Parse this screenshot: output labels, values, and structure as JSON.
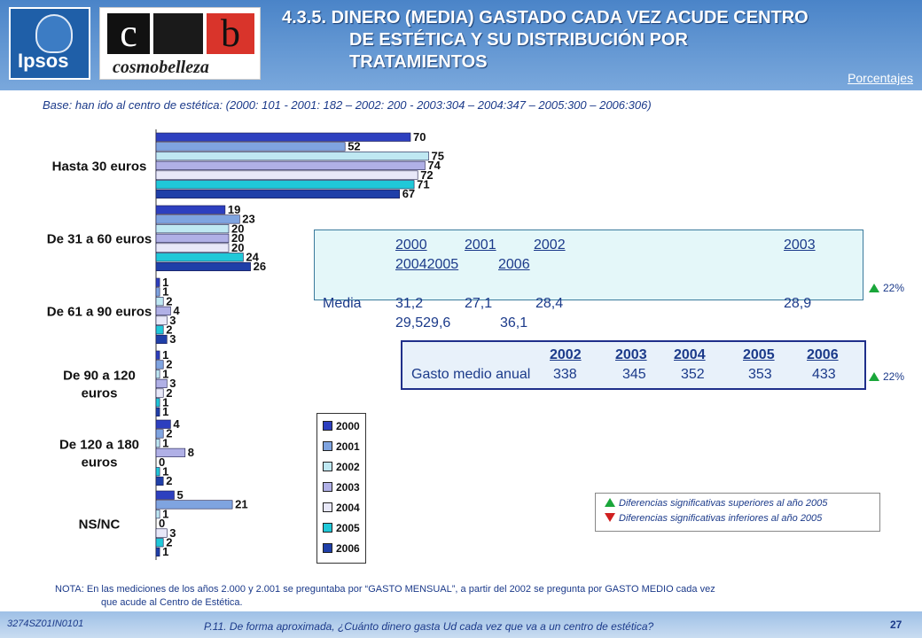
{
  "header": {
    "title_lines": [
      "4.3.5. DINERO (MEDIA) GASTADO CADA VEZ ACUDE CENTRO",
      "DE ESTÉTICA Y SU DISTRIBUCIÓN POR",
      "TRATAMIENTOS"
    ],
    "unit_label": "Porcentajes",
    "logo_ipsos": "Ipsos",
    "logo_cosmo_c": "c",
    "logo_cosmo_b": "b",
    "logo_cosmo_text": "cosmobelleza"
  },
  "base_text": "Base: han ido al centro de estética: (2000: 101 - 2001: 182 – 2002: 200 - 2003:304 – 2004:347 – 2005:300 – 2006:306)",
  "chart_data": {
    "type": "bar",
    "orientation": "horizontal",
    "categories": [
      "Hasta 30 euros",
      "De 31 a 60 euros",
      "De 61 a 90 euros",
      "De 90 a 120 euros",
      "De 120 a 180 euros",
      "NS/NC"
    ],
    "series": [
      {
        "name": "2000",
        "color": "#2d3fbf",
        "values": [
          70,
          19,
          1,
          1,
          4,
          5
        ]
      },
      {
        "name": "2001",
        "color": "#7fa4e0",
        "values": [
          52,
          23,
          1,
          2,
          2,
          21
        ]
      },
      {
        "name": "2002",
        "color": "#bfe8f2",
        "values": [
          75,
          20,
          2,
          1,
          1,
          1
        ]
      },
      {
        "name": "2003",
        "color": "#b0b0e6",
        "values": [
          74,
          20,
          4,
          3,
          8,
          0
        ]
      },
      {
        "name": "2004",
        "color": "#e8e8f8",
        "values": [
          72,
          20,
          3,
          2,
          0,
          3
        ]
      },
      {
        "name": "2005",
        "color": "#20c8d8",
        "values": [
          71,
          24,
          2,
          1,
          1,
          2
        ]
      },
      {
        "name": "2006",
        "color": "#1f3fa8",
        "values": [
          67,
          26,
          3,
          1,
          2,
          1
        ]
      }
    ],
    "xlim": [
      0,
      100
    ],
    "legend_position": "bottom-center"
  },
  "table1": {
    "header_line1": [
      "2000",
      "2001",
      "2002",
      "2003"
    ],
    "header_line2": [
      "20042005",
      "2006"
    ],
    "row_label": "Media",
    "row_line1": [
      "31,2",
      "27,1",
      "28,4",
      "28,9"
    ],
    "row_line2": [
      "29,529,6",
      "36,1"
    ],
    "sig_label": "22%"
  },
  "table2": {
    "headers": [
      "2002",
      "2003",
      "2004",
      "2005",
      "2006"
    ],
    "row_label": "Gasto medio anual",
    "values": [
      "338",
      "345",
      "352",
      "353",
      "433"
    ],
    "sig_label": "22%"
  },
  "significance_legend": {
    "up": "Diferencias significativas superiores al año 2005",
    "down": "Diferencias significativas inferiores al año 2005",
    "up_color": "#1aa63a",
    "down_color": "#d02020"
  },
  "note_line1": "NOTA:  En las mediciones de los años 2.000 y 2.001 se preguntaba por “GASTO MENSUAL”, a partir del 2002 se pregunta por GASTO MEDIO cada vez",
  "note_line2": "que acude al Centro de Estética.",
  "footer": {
    "code": "3274SZ01IN0101",
    "question": "P.11.  De forma aproximada, ¿Cuánto dinero gasta Ud cada vez que va a un centro de estética?",
    "page": "27"
  }
}
